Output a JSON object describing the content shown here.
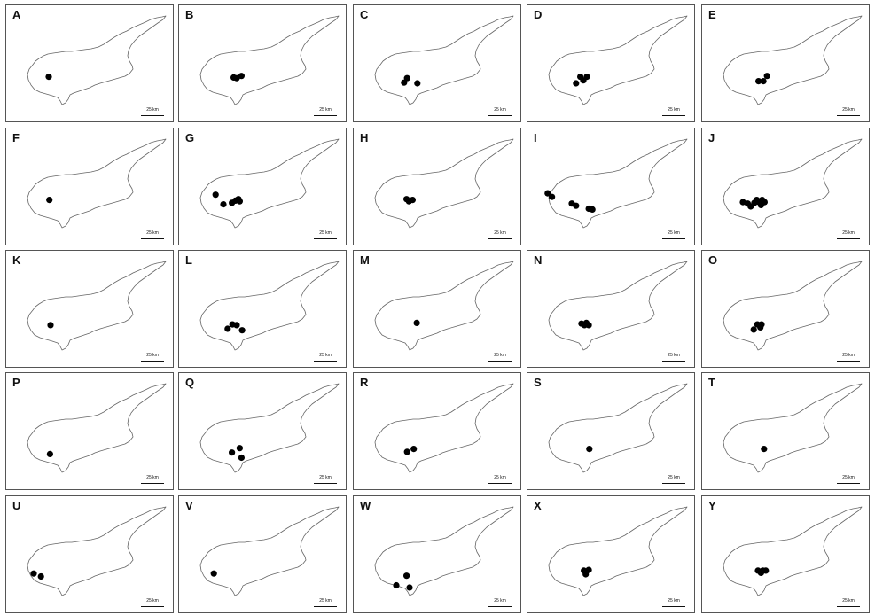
{
  "figure": {
    "scale_label": "25 km",
    "point_color": "#000000",
    "outline_color": "#666666",
    "panels": [
      {
        "letter": "A",
        "points": [
          [
            32.7,
            34.95
          ]
        ]
      },
      {
        "letter": "B",
        "points": [
          [
            32.9,
            34.94
          ],
          [
            32.95,
            34.93
          ],
          [
            33.03,
            34.96
          ]
        ]
      },
      {
        "letter": "C",
        "points": [
          [
            32.83,
            34.87
          ],
          [
            32.88,
            34.93
          ],
          [
            33.05,
            34.86
          ]
        ]
      },
      {
        "letter": "D",
        "points": [
          [
            32.8,
            34.86
          ],
          [
            32.87,
            34.95
          ],
          [
            32.92,
            34.9
          ],
          [
            32.98,
            34.95
          ]
        ]
      },
      {
        "letter": "E",
        "points": [
          [
            32.93,
            34.89
          ],
          [
            33.01,
            34.89
          ],
          [
            33.07,
            34.96
          ]
        ]
      },
      {
        "letter": "F",
        "points": [
          [
            32.71,
            34.95
          ]
        ]
      },
      {
        "letter": "G",
        "points": [
          [
            32.6,
            35.02
          ],
          [
            32.73,
            34.89
          ],
          [
            32.87,
            34.91
          ],
          [
            32.93,
            34.94
          ],
          [
            33.0,
            34.93
          ],
          [
            32.98,
            34.96
          ]
        ]
      },
      {
        "letter": "H",
        "points": [
          [
            32.87,
            34.96
          ],
          [
            32.91,
            34.93
          ],
          [
            32.97,
            34.95
          ]
        ]
      },
      {
        "letter": "I",
        "points": [
          [
            32.33,
            35.04
          ],
          [
            32.4,
            34.99
          ],
          [
            32.73,
            34.9
          ],
          [
            32.8,
            34.87
          ],
          [
            33.01,
            34.83
          ],
          [
            33.07,
            34.82
          ]
        ]
      },
      {
        "letter": "J",
        "points": [
          [
            32.67,
            34.92
          ],
          [
            32.75,
            34.9
          ],
          [
            32.8,
            34.86
          ],
          [
            32.86,
            34.91
          ],
          [
            32.9,
            34.95
          ],
          [
            32.94,
            34.92
          ],
          [
            32.99,
            34.95
          ],
          [
            33.03,
            34.92
          ],
          [
            32.97,
            34.88
          ]
        ]
      },
      {
        "letter": "K",
        "points": [
          [
            32.73,
            34.91
          ]
        ]
      },
      {
        "letter": "L",
        "points": [
          [
            32.8,
            34.86
          ],
          [
            32.88,
            34.92
          ],
          [
            32.95,
            34.91
          ],
          [
            33.04,
            34.84
          ]
        ]
      },
      {
        "letter": "M",
        "points": [
          [
            33.04,
            34.94
          ]
        ]
      },
      {
        "letter": "N",
        "points": [
          [
            32.89,
            34.93
          ],
          [
            32.94,
            34.91
          ],
          [
            32.97,
            34.94
          ],
          [
            33.01,
            34.91
          ]
        ]
      },
      {
        "letter": "O",
        "points": [
          [
            32.85,
            34.85
          ],
          [
            32.91,
            34.92
          ],
          [
            32.96,
            34.88
          ],
          [
            32.98,
            34.92
          ]
        ]
      },
      {
        "letter": "P",
        "points": [
          [
            32.72,
            34.82
          ]
        ]
      },
      {
        "letter": "Q",
        "points": [
          [
            32.87,
            34.84
          ],
          [
            33.0,
            34.9
          ],
          [
            33.03,
            34.77
          ]
        ]
      },
      {
        "letter": "R",
        "points": [
          [
            32.88,
            34.85
          ],
          [
            32.99,
            34.89
          ]
        ]
      },
      {
        "letter": "S",
        "points": [
          [
            33.02,
            34.89
          ]
        ]
      },
      {
        "letter": "T",
        "points": [
          [
            33.02,
            34.89
          ]
        ]
      },
      {
        "letter": "U",
        "points": [
          [
            32.45,
            34.87
          ],
          [
            32.57,
            34.83
          ]
        ]
      },
      {
        "letter": "V",
        "points": [
          [
            32.57,
            34.87
          ]
        ]
      },
      {
        "letter": "W",
        "points": [
          [
            32.7,
            34.71
          ],
          [
            32.87,
            34.84
          ],
          [
            32.92,
            34.68
          ]
        ]
      },
      {
        "letter": "X",
        "points": [
          [
            32.93,
            34.91
          ],
          [
            32.96,
            34.86
          ],
          [
            33.01,
            34.92
          ]
        ]
      },
      {
        "letter": "Y",
        "points": [
          [
            32.92,
            34.91
          ],
          [
            32.97,
            34.88
          ],
          [
            33.0,
            34.91
          ],
          [
            33.05,
            34.91
          ]
        ]
      }
    ]
  }
}
